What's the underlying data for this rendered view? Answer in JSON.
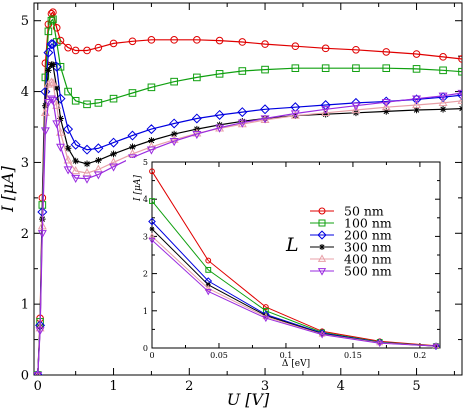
{
  "chart_data": [
    {
      "type": "line",
      "xlabel": "U [V]",
      "ylabel": "I [μA]",
      "xlim": [
        -0.05,
        5.6
      ],
      "ylim": [
        0,
        5.25
      ],
      "x_ticks": [
        0,
        1,
        2,
        3,
        4,
        5
      ],
      "y_ticks": [
        0,
        1,
        2,
        3,
        4,
        5
      ],
      "x_tick_labels": [
        "0",
        "1",
        "2",
        "3",
        "4",
        "5"
      ],
      "y_tick_labels": [
        "0",
        "1",
        "2",
        "3",
        "4",
        "5"
      ],
      "series": [
        {
          "name": "50 nm",
          "color": "#e00000",
          "marker": "circle",
          "x": [
            0,
            0.03,
            0.06,
            0.1,
            0.14,
            0.18,
            0.2,
            0.25,
            0.3,
            0.4,
            0.5,
            0.65,
            0.8,
            1.0,
            1.25,
            1.5,
            1.8,
            2.1,
            2.4,
            2.7,
            3.0,
            3.4,
            3.8,
            4.2,
            4.6,
            5.0,
            5.35,
            5.6
          ],
          "y": [
            0,
            0.8,
            2.5,
            4.4,
            4.95,
            5.1,
            5.12,
            4.9,
            4.72,
            4.62,
            4.58,
            4.58,
            4.62,
            4.68,
            4.71,
            4.73,
            4.73,
            4.73,
            4.72,
            4.7,
            4.67,
            4.64,
            4.61,
            4.59,
            4.56,
            4.53,
            4.49,
            4.46
          ]
        },
        {
          "name": "100 nm",
          "color": "#10a010",
          "marker": "square",
          "x": [
            0,
            0.03,
            0.06,
            0.1,
            0.14,
            0.18,
            0.2,
            0.25,
            0.3,
            0.4,
            0.5,
            0.65,
            0.8,
            1.0,
            1.25,
            1.5,
            1.8,
            2.1,
            2.4,
            2.7,
            3.0,
            3.4,
            3.8,
            4.2,
            4.6,
            5.0,
            5.35,
            5.6
          ],
          "y": [
            0,
            0.75,
            2.4,
            4.2,
            4.85,
            5.0,
            5.02,
            4.7,
            4.35,
            4.0,
            3.87,
            3.82,
            3.84,
            3.9,
            3.98,
            4.06,
            4.14,
            4.2,
            4.25,
            4.29,
            4.31,
            4.33,
            4.33,
            4.33,
            4.33,
            4.32,
            4.3,
            4.28
          ]
        },
        {
          "name": "200 nm",
          "color": "#0000e0",
          "marker": "diamond",
          "x": [
            0,
            0.03,
            0.06,
            0.1,
            0.14,
            0.18,
            0.2,
            0.25,
            0.3,
            0.4,
            0.5,
            0.65,
            0.8,
            1.0,
            1.25,
            1.5,
            1.8,
            2.1,
            2.4,
            2.7,
            3.0,
            3.4,
            3.8,
            4.2,
            4.6,
            5.0,
            5.35,
            5.6
          ],
          "y": [
            0,
            0.7,
            2.3,
            4.0,
            4.55,
            4.67,
            4.67,
            4.35,
            3.9,
            3.47,
            3.25,
            3.18,
            3.2,
            3.28,
            3.38,
            3.47,
            3.55,
            3.62,
            3.67,
            3.71,
            3.75,
            3.78,
            3.81,
            3.84,
            3.86,
            3.89,
            3.92,
            3.95
          ]
        },
        {
          "name": "300 nm",
          "color": "#000000",
          "marker": "star",
          "x": [
            0,
            0.03,
            0.06,
            0.1,
            0.14,
            0.18,
            0.2,
            0.25,
            0.3,
            0.4,
            0.5,
            0.65,
            0.8,
            1.0,
            1.25,
            1.5,
            1.8,
            2.1,
            2.4,
            2.7,
            3.0,
            3.4,
            3.8,
            4.2,
            4.6,
            5.0,
            5.35,
            5.6
          ],
          "y": [
            0,
            0.68,
            2.2,
            3.8,
            4.3,
            4.38,
            4.38,
            4.05,
            3.62,
            3.2,
            3.02,
            2.98,
            3.03,
            3.12,
            3.22,
            3.31,
            3.4,
            3.47,
            3.53,
            3.58,
            3.62,
            3.66,
            3.68,
            3.7,
            3.72,
            3.74,
            3.75,
            3.76
          ]
        },
        {
          "name": "400 nm",
          "color": "#e8a0a8",
          "marker": "triangle-up",
          "x": [
            0,
            0.03,
            0.06,
            0.1,
            0.14,
            0.18,
            0.2,
            0.25,
            0.3,
            0.4,
            0.5,
            0.65,
            0.8,
            1.0,
            1.25,
            1.5,
            1.8,
            2.1,
            2.4,
            2.7,
            3.0,
            3.4,
            3.8,
            4.2,
            4.6,
            5.0,
            5.35,
            5.6
          ],
          "y": [
            0,
            0.66,
            2.1,
            3.7,
            4.1,
            4.13,
            4.12,
            3.8,
            3.42,
            3.03,
            2.88,
            2.85,
            2.9,
            3.0,
            3.12,
            3.22,
            3.32,
            3.41,
            3.48,
            3.54,
            3.6,
            3.66,
            3.7,
            3.74,
            3.78,
            3.81,
            3.84,
            3.87
          ]
        },
        {
          "name": "500 nm",
          "color": "#9a2be0",
          "marker": "triangle-down",
          "x": [
            0,
            0.03,
            0.06,
            0.1,
            0.14,
            0.18,
            0.2,
            0.25,
            0.3,
            0.4,
            0.5,
            0.65,
            0.8,
            1.0,
            1.25,
            1.5,
            1.8,
            2.1,
            2.4,
            2.7,
            3.0,
            3.4,
            3.8,
            4.2,
            4.6,
            5.0,
            5.35,
            5.6
          ],
          "y": [
            0,
            0.63,
            2.0,
            3.45,
            3.85,
            3.9,
            3.88,
            3.55,
            3.22,
            2.9,
            2.78,
            2.77,
            2.83,
            2.94,
            3.07,
            3.18,
            3.3,
            3.4,
            3.49,
            3.56,
            3.62,
            3.69,
            3.75,
            3.8,
            3.85,
            3.9,
            3.94,
            3.98
          ]
        }
      ]
    },
    {
      "type": "line",
      "xlabel": "Δ [eV]",
      "ylabel": "I [μA]",
      "xlim": [
        0,
        0.215
      ],
      "ylim": [
        0,
        5
      ],
      "x_ticks": [
        0,
        0.05,
        0.1,
        0.15,
        0.2
      ],
      "y_ticks": [
        0,
        1,
        2,
        3,
        4,
        5
      ],
      "x_tick_labels": [
        "0",
        "0.05",
        "0.1",
        "0.15",
        "0.2"
      ],
      "y_tick_labels": [
        "0",
        "1",
        "2",
        "3",
        "4",
        "5"
      ],
      "legend": {
        "title": "L",
        "position": "top-right"
      },
      "x": [
        0,
        0.042,
        0.085,
        0.127,
        0.17,
        0.212
      ],
      "series": [
        {
          "name": "50 nm",
          "color": "#e00000",
          "marker": "circle",
          "values": [
            4.75,
            2.35,
            1.1,
            0.45,
            0.18,
            0.06
          ]
        },
        {
          "name": "100 nm",
          "color": "#10a010",
          "marker": "square",
          "values": [
            3.95,
            2.1,
            1.0,
            0.42,
            0.16,
            0.05
          ]
        },
        {
          "name": "200 nm",
          "color": "#0000e0",
          "marker": "diamond",
          "values": [
            3.4,
            1.8,
            0.9,
            0.4,
            0.15,
            0.05
          ]
        },
        {
          "name": "300 nm",
          "color": "#000000",
          "marker": "star",
          "values": [
            3.2,
            1.7,
            0.87,
            0.38,
            0.14,
            0.05
          ]
        },
        {
          "name": "400 nm",
          "color": "#e8a0a8",
          "marker": "triangle-up",
          "values": [
            3.0,
            1.6,
            0.84,
            0.37,
            0.14,
            0.05
          ]
        },
        {
          "name": "500 nm",
          "color": "#9a2be0",
          "marker": "triangle-down",
          "values": [
            2.9,
            1.52,
            0.8,
            0.36,
            0.13,
            0.05
          ]
        }
      ]
    }
  ]
}
